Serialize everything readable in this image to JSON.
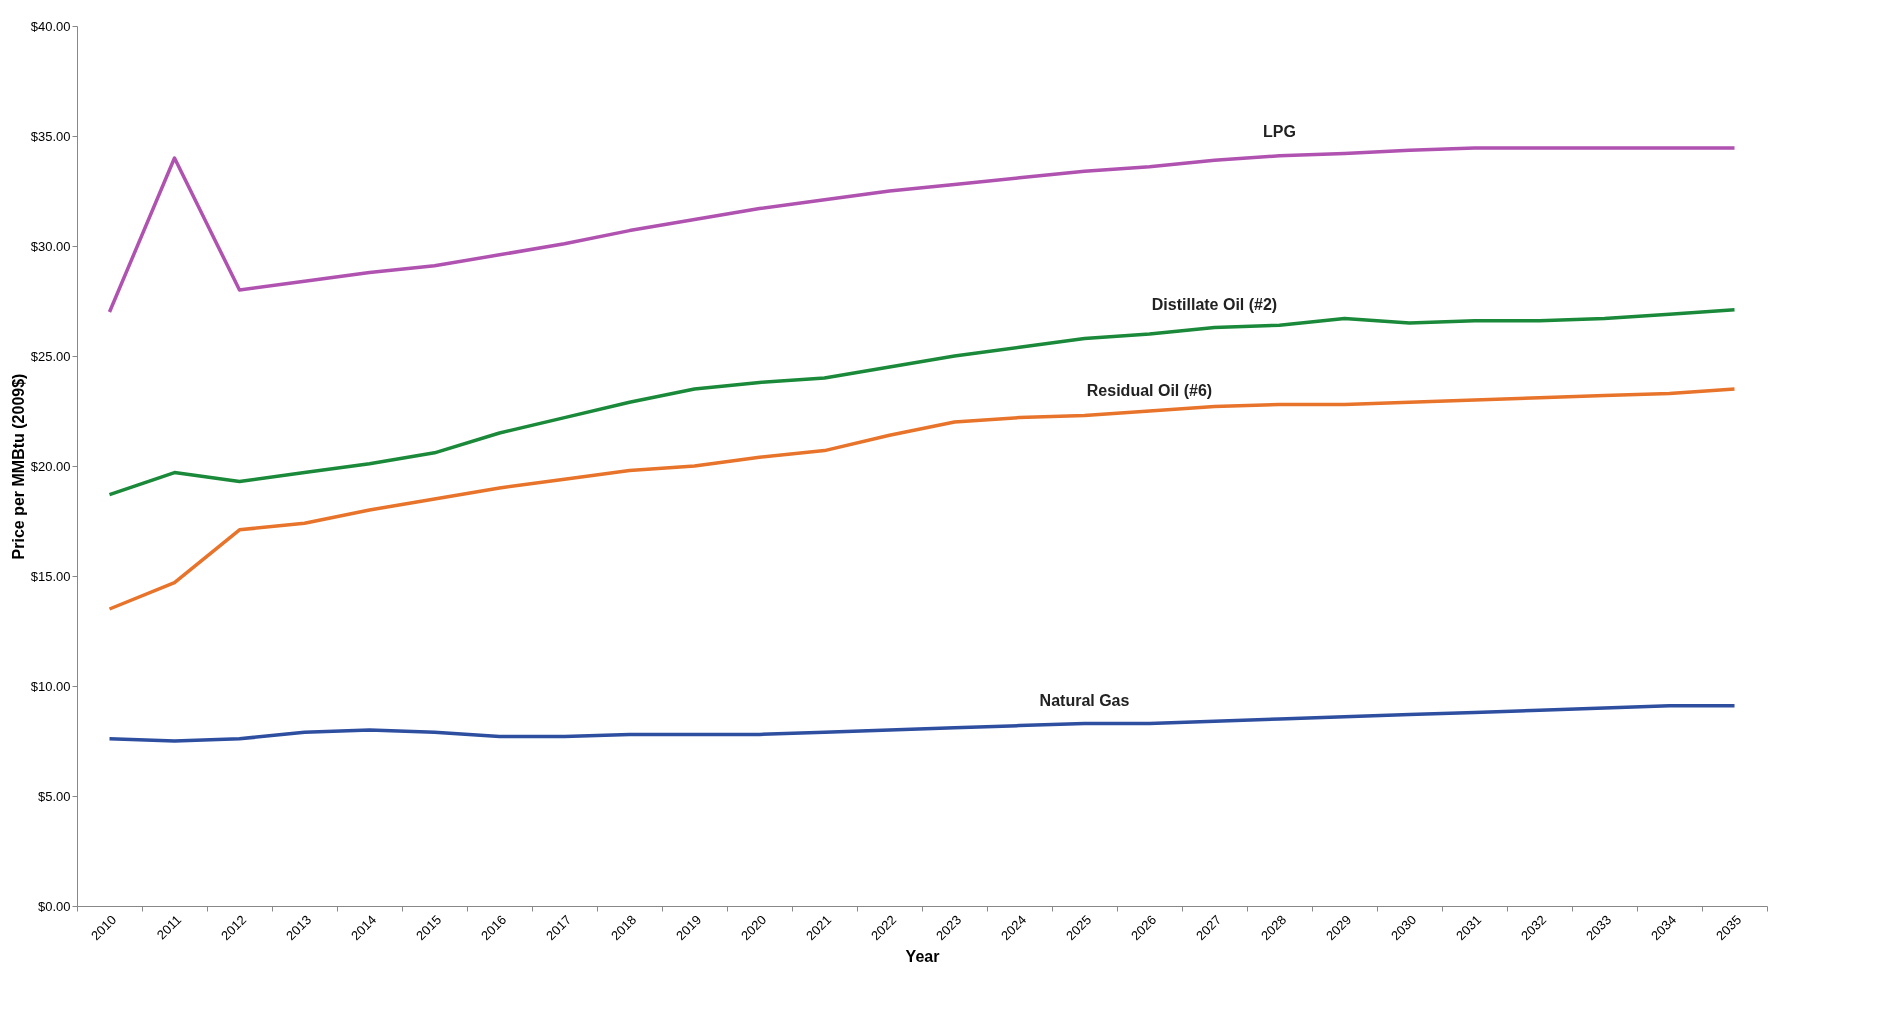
{
  "chart_data": {
    "type": "line",
    "xlabel": "Year",
    "ylabel": "Price per MMBtu (2009$)",
    "categories": [
      "2010",
      "2011",
      "2012",
      "2013",
      "2014",
      "2015",
      "2016",
      "2017",
      "2018",
      "2019",
      "2020",
      "2021",
      "2022",
      "2023",
      "2024",
      "2025",
      "2026",
      "2027",
      "2028",
      "2029",
      "2030",
      "2031",
      "2032",
      "2033",
      "2034",
      "2035"
    ],
    "ylim": [
      0,
      40
    ],
    "yticks": [
      {
        "value": 0,
        "label": "$0.00"
      },
      {
        "value": 5,
        "label": "$5.00"
      },
      {
        "value": 10,
        "label": "$10.00"
      },
      {
        "value": 15,
        "label": "$15.00"
      },
      {
        "value": 20,
        "label": "$20.00"
      },
      {
        "value": 25,
        "label": "$25.00"
      },
      {
        "value": 30,
        "label": "$30.00"
      },
      {
        "value": 35,
        "label": "$35.00"
      },
      {
        "value": 40,
        "label": "$40.00"
      }
    ],
    "grid": false,
    "legend": false,
    "line_style": "solid",
    "marker": "none",
    "series": [
      {
        "name": "LPG",
        "color": "#b052b0",
        "values": [
          27,
          34,
          28,
          28.4,
          28.8,
          29.1,
          29.6,
          30.1,
          30.7,
          31.2,
          31.7,
          32.1,
          32.5,
          32.8,
          33.1,
          33.4,
          33.6,
          33.9,
          34.1,
          34.2,
          34.35,
          34.45,
          34.45,
          34.45,
          34.45,
          34.45
        ]
      },
      {
        "name": "Distillate Oil (#2)",
        "color": "#1a8a3a",
        "values": [
          18.7,
          19.7,
          19.3,
          19.7,
          20.1,
          20.6,
          21.5,
          22.2,
          22.9,
          23.5,
          23.8,
          24.0,
          24.5,
          25.0,
          25.4,
          25.8,
          26.0,
          26.3,
          26.4,
          26.7,
          26.5,
          26.6,
          26.6,
          26.7,
          26.9,
          27.1
        ]
      },
      {
        "name": "Residual Oil (#6)",
        "color": "#e8732a",
        "values": [
          13.5,
          14.7,
          17.1,
          17.4,
          18.0,
          18.5,
          19.0,
          19.4,
          19.8,
          20.0,
          20.4,
          20.7,
          21.4,
          22.0,
          22.2,
          22.3,
          22.5,
          22.7,
          22.8,
          22.8,
          22.9,
          23.0,
          23.1,
          23.2,
          23.3,
          23.5
        ]
      },
      {
        "name": "Natural Gas",
        "color": "#2e4ea0",
        "values": [
          7.6,
          7.5,
          7.6,
          7.9,
          8.0,
          7.9,
          7.7,
          7.7,
          7.8,
          7.8,
          7.8,
          7.9,
          8.0,
          8.1,
          8.2,
          8.3,
          8.3,
          8.4,
          8.5,
          8.6,
          8.7,
          8.8,
          8.9,
          9.0,
          9.1,
          9.1
        ]
      }
    ]
  }
}
